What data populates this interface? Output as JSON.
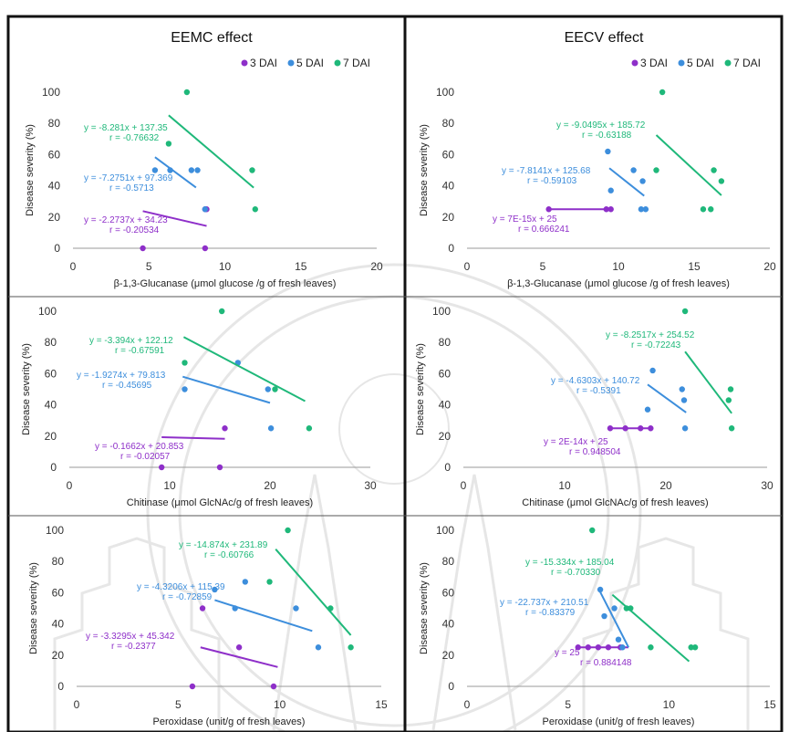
{
  "columns": [
    {
      "title": "EEMC effect"
    },
    {
      "title": "EECV effect"
    }
  ],
  "colors": {
    "3 DAI": "#8e2fc9",
    "5 DAI": "#3d8edc",
    "7 DAI": "#1fb87a"
  },
  "chart_data": [
    {
      "type": "scatter",
      "title": "EEMC effect",
      "xlabel": "β-1,3-Glucanase (μmol glucose /g of fresh leaves)",
      "ylabel": "Disease severity (%)",
      "xlim": [
        0,
        20
      ],
      "ylim": [
        0,
        100
      ],
      "xticks": [
        0,
        5,
        10,
        15,
        20
      ],
      "yticks": [
        0,
        20,
        40,
        60,
        80,
        100
      ],
      "legend": [
        "3 DAI",
        "5 DAI",
        "7 DAI"
      ],
      "series": [
        {
          "name": "3 DAI",
          "x": [
            4.6,
            8.7,
            8.8,
            8.7
          ],
          "y": [
            0,
            0,
            25,
            25
          ],
          "fit": {
            "x": [
              4.6,
              8.8
            ],
            "y": [
              23.8,
              14.3
            ]
          },
          "equation": "y = -2.2737x + 34.23",
          "r": "r = -0.20534"
        },
        {
          "name": "5 DAI",
          "x": [
            5.4,
            6.4,
            7.8,
            8.2,
            8.7
          ],
          "y": [
            50,
            50,
            50,
            50,
            25
          ],
          "fit": {
            "x": [
              5.4,
              8.1
            ],
            "y": [
              58.4,
              38.9
            ]
          },
          "equation": "y = -7.2751x + 97.369",
          "r": "r = -0.5713"
        },
        {
          "name": "7 DAI",
          "x": [
            6.3,
            7.5,
            11.8,
            12.0
          ],
          "y": [
            67,
            100,
            50,
            25
          ],
          "fit": {
            "x": [
              6.3,
              11.9
            ],
            "y": [
              85.2,
              38.8
            ]
          },
          "equation": "y = -8.281x + 137.35",
          "r": "r = -0.76632"
        }
      ]
    },
    {
      "type": "scatter",
      "title": "EECV effect",
      "xlabel": "β-1,3-Glucanase (μmol glucose /g of fresh leaves)",
      "ylabel": "Disease severity (%)",
      "xlim": [
        0,
        20
      ],
      "ylim": [
        0,
        100
      ],
      "xticks": [
        0,
        5,
        10,
        15,
        20
      ],
      "yticks": [
        0,
        20,
        40,
        60,
        80,
        100
      ],
      "legend": [
        "3 DAI",
        "5 DAI",
        "7 DAI"
      ],
      "series": [
        {
          "name": "3 DAI",
          "x": [
            5.4,
            9.2,
            9.5
          ],
          "y": [
            25,
            25,
            25
          ],
          "fit": {
            "x": [
              5.4,
              9.5
            ],
            "y": [
              25,
              25
            ]
          },
          "equation": "y = 7E-15x + 25",
          "r": "r = 0.666241"
        },
        {
          "name": "5 DAI",
          "x": [
            9.3,
            9.5,
            11.0,
            11.5,
            11.8,
            11.6
          ],
          "y": [
            62,
            37,
            50,
            25,
            25,
            43
          ],
          "fit": {
            "x": [
              9.4,
              11.7
            ],
            "y": [
              51.3,
              33.6
            ]
          },
          "equation": "y = -7.8141x + 125.68",
          "r": "r = -0.59103"
        },
        {
          "name": "7 DAI",
          "x": [
            12.5,
            12.9,
            15.6,
            16.1,
            16.3,
            16.8
          ],
          "y": [
            50,
            100,
            25,
            25,
            50,
            43
          ],
          "fit": {
            "x": [
              12.5,
              16.8
            ],
            "y": [
              72.5,
              33.9
            ]
          },
          "equation": "y = -9.0495x + 185.72",
          "r": "r = -0.63188"
        }
      ]
    },
    {
      "type": "scatter",
      "xlabel": "Chitinase (μmol GlcNAc/g of fresh leaves)",
      "ylabel": "Disease severity (%)",
      "xlim": [
        0,
        30
      ],
      "ylim": [
        0,
        100
      ],
      "xticks": [
        0,
        10,
        20,
        30
      ],
      "yticks": [
        0,
        20,
        40,
        60,
        80,
        100
      ],
      "series": [
        {
          "name": "3 DAI",
          "x": [
            9.2,
            15.0,
            15.5
          ],
          "y": [
            0,
            0,
            25
          ],
          "fit": {
            "x": [
              9.2,
              15.5
            ],
            "y": [
              19.3,
              18.3
            ]
          },
          "equation": "y = -0.1662x + 20.853",
          "r": "r = -0.02057"
        },
        {
          "name": "5 DAI",
          "x": [
            11.5,
            16.8,
            19.8,
            20.1
          ],
          "y": [
            50,
            67,
            50,
            25
          ],
          "fit": {
            "x": [
              11.3,
              20.0
            ],
            "y": [
              58.1,
              41.3
            ]
          },
          "equation": "y = -1.9274x + 79.813",
          "r": "r = -0.45695"
        },
        {
          "name": "7 DAI",
          "x": [
            11.5,
            15.2,
            20.5,
            23.9
          ],
          "y": [
            67,
            100,
            50,
            25
          ],
          "fit": {
            "x": [
              11.4,
              23.5
            ],
            "y": [
              83.5,
              42.4
            ]
          },
          "equation": "y = -3.394x + 122.12",
          "r": "r = -0.67591"
        }
      ]
    },
    {
      "type": "scatter",
      "xlabel": "Chitinase (μmol GlcNAc/g of fresh leaves)",
      "ylabel": "Disease severity (%)",
      "xlim": [
        0,
        30
      ],
      "ylim": [
        0,
        100
      ],
      "xticks": [
        0,
        10,
        20,
        30
      ],
      "yticks": [
        0,
        20,
        40,
        60,
        80,
        100
      ],
      "series": [
        {
          "name": "3 DAI",
          "x": [
            14.5,
            16.0,
            17.5,
            18.5
          ],
          "y": [
            25,
            25,
            25,
            25
          ],
          "fit": {
            "x": [
              14.5,
              18.6
            ],
            "y": [
              25,
              25
            ]
          },
          "equation": "y = 2E-14x + 25",
          "r": "r = 0.948504"
        },
        {
          "name": "5 DAI",
          "x": [
            18.2,
            18.7,
            21.6,
            21.8,
            21.9
          ],
          "y": [
            37,
            62,
            50,
            43,
            25
          ],
          "fit": {
            "x": [
              18.2,
              22.0
            ],
            "y": [
              53.0,
              35.1
            ]
          },
          "equation": "y = -4.6303x + 140.72",
          "r": "r = -0.5391"
        },
        {
          "name": "7 DAI",
          "x": [
            21.9,
            26.2,
            26.4,
            26.5
          ],
          "y": [
            100,
            43,
            50,
            25
          ],
          "fit": {
            "x": [
              21.9,
              26.5
            ],
            "y": [
              74.1,
              34.6
            ]
          },
          "equation": "y = -8.2517x + 254.52",
          "r": "r = -0.72243"
        }
      ]
    },
    {
      "type": "scatter",
      "xlabel": "Peroxidase (unit/g of fresh leaves)",
      "ylabel": "Disease severity (%)",
      "xlim": [
        0,
        15
      ],
      "ylim": [
        0,
        100
      ],
      "xticks": [
        0,
        5,
        10,
        15
      ],
      "yticks": [
        0,
        20,
        40,
        60,
        80,
        100
      ],
      "series": [
        {
          "name": "3 DAI",
          "x": [
            5.7,
            6.2,
            8.0,
            9.7
          ],
          "y": [
            0,
            50,
            25,
            0
          ],
          "fit": {
            "x": [
              6.1,
              9.9
            ],
            "y": [
              25.0,
              12.4
            ]
          },
          "equation": "y = -3.3295x + 45.342",
          "r": "r = -0.2377"
        },
        {
          "name": "5 DAI",
          "x": [
            6.8,
            7.8,
            8.3,
            10.8,
            11.9
          ],
          "y": [
            62,
            50,
            67,
            50,
            25
          ],
          "fit": {
            "x": [
              6.8,
              11.6
            ],
            "y": [
              55.3,
              35.5
            ]
          },
          "equation": "y = -4.3206x + 115.39",
          "r": "r = -0.72859"
        },
        {
          "name": "7 DAI",
          "x": [
            9.5,
            10.4,
            12.5,
            13.5
          ],
          "y": [
            67,
            100,
            50,
            25
          ],
          "fit": {
            "x": [
              9.8,
              13.5
            ],
            "y": [
              87.9,
              32.8
            ]
          },
          "equation": "y = -14.874x + 231.89",
          "r": "r = -0.60766"
        }
      ]
    },
    {
      "type": "scatter",
      "xlabel": "Peroxidase (unit/g of fresh leaves)",
      "ylabel": "Disease severity (%)",
      "xlim": [
        0,
        15
      ],
      "ylim": [
        0,
        100
      ],
      "xticks": [
        0,
        5,
        10,
        15
      ],
      "yticks": [
        0,
        20,
        40,
        60,
        80,
        100
      ],
      "series": [
        {
          "name": "3 DAI",
          "x": [
            5.5,
            6.0,
            6.5,
            7.0,
            7.6
          ],
          "y": [
            25,
            25,
            25,
            25,
            25
          ],
          "fit": {
            "x": [
              5.5,
              8.0
            ],
            "y": [
              25,
              25
            ]
          },
          "equation": "y = 25",
          "r": "r = 0.884148"
        },
        {
          "name": "5 DAI",
          "x": [
            6.6,
            6.8,
            7.3,
            7.5,
            7.7
          ],
          "y": [
            62,
            45,
            50,
            30,
            25
          ],
          "fit": {
            "x": [
              6.6,
              8.0
            ],
            "y": [
              60.4,
              25.0
            ]
          },
          "equation": "y = -22.737x + 210.51",
          "r": "r = -0.83379"
        },
        {
          "name": "7 DAI",
          "x": [
            6.2,
            7.9,
            8.1,
            9.1,
            11.1,
            11.3
          ],
          "y": [
            100,
            50,
            50,
            25,
            25,
            25
          ],
          "fit": {
            "x": [
              7.2,
              11.0
            ],
            "y": [
              58.7,
              16.0
            ]
          },
          "equation": "y = -15.334x + 185.04",
          "r": "r = -0.70330"
        }
      ]
    }
  ]
}
